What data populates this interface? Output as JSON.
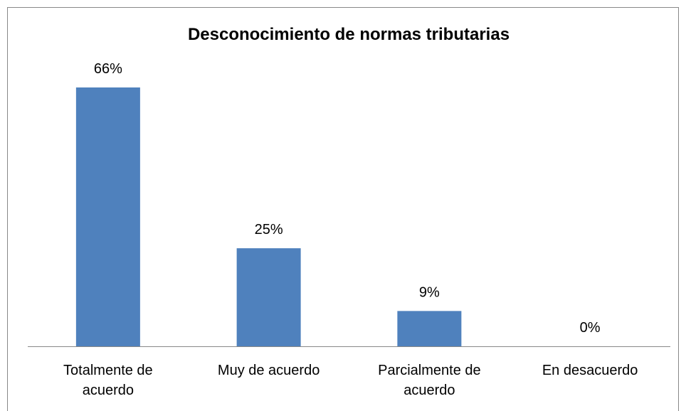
{
  "chart_data": {
    "type": "bar",
    "title": "Desconocimiento de normas tributarias",
    "categories": [
      "Totalmente de acuerdo",
      "Muy de acuerdo",
      "Parcialmente de acuerdo",
      "En desacuerdo"
    ],
    "values": [
      66,
      25,
      9,
      0
    ],
    "value_labels": [
      "66%",
      "25%",
      "9%",
      "0%"
    ],
    "color": "#4f81bd"
  }
}
